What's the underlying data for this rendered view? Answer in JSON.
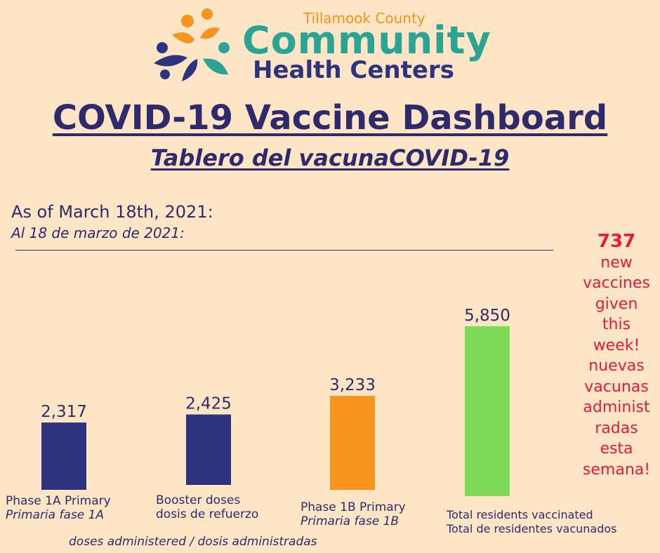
{
  "header": {
    "county": "Tillamook County",
    "org_name": "Community",
    "org_sub": "Health Centers",
    "title": "COVID-19 Vaccine Dashboard",
    "subtitle": "Tablero del vacunaCOVID-19"
  },
  "as_of": {
    "en": "As of March 18th, 2021:",
    "es": "Al 18 de marzo de 2021:"
  },
  "chart_data": {
    "type": "bar",
    "categories": [
      "Phase 1A Primary",
      "Booster doses",
      "Phase 1B Primary",
      "Total residents vaccinated"
    ],
    "categories_es": [
      "Primaria fase 1A",
      "dosis de refuerzo",
      "Primaria fase 1B",
      "Total de residentes vacunados"
    ],
    "values": [
      2317,
      2425,
      3233,
      5850
    ],
    "value_labels": [
      "2,317",
      "2,425",
      "3,233",
      "5,850"
    ],
    "colors": [
      "#2e3380",
      "#2e3380",
      "#f7941d",
      "#7ed957"
    ],
    "footnote": "doses administered / dosis administradas"
  },
  "callout": {
    "number": "737",
    "lines": [
      "new",
      "vaccines",
      "given",
      "this",
      "week!",
      "nuevas",
      "vacunas",
      "administ",
      "radas",
      "esta",
      "semana!"
    ]
  },
  "colors": {
    "background": "#fde5c5",
    "navy": "#2e2a6b",
    "accent_red": "#e8193d",
    "teal": "#2ba494",
    "orange": "#f0941c"
  }
}
